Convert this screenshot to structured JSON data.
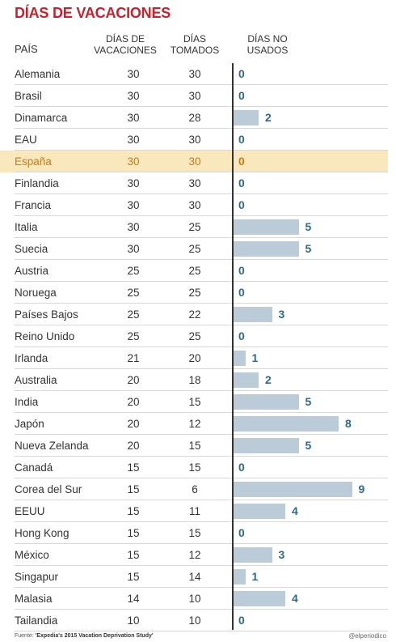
{
  "chart_data": {
    "type": "bar",
    "title": "DÍAS DE VACACIONES",
    "columns": {
      "country": "PAÍS",
      "vacation": "DÍAS DE VACACIONES",
      "taken": "DÍAS TOMADOS",
      "unused": "DÍAS NO USADOS"
    },
    "rows": [
      {
        "country": "Alemania",
        "vacation": 30,
        "taken": 30,
        "unused": 0
      },
      {
        "country": "Brasil",
        "vacation": 30,
        "taken": 30,
        "unused": 0
      },
      {
        "country": "Dinamarca",
        "vacation": 30,
        "taken": 28,
        "unused": 2
      },
      {
        "country": "EAU",
        "vacation": 30,
        "taken": 30,
        "unused": 0
      },
      {
        "country": "España",
        "vacation": 30,
        "taken": 30,
        "unused": 0,
        "highlight": true
      },
      {
        "country": "Finlandia",
        "vacation": 30,
        "taken": 30,
        "unused": 0
      },
      {
        "country": "Francia",
        "vacation": 30,
        "taken": 30,
        "unused": 0
      },
      {
        "country": "Italia",
        "vacation": 30,
        "taken": 25,
        "unused": 5
      },
      {
        "country": "Suecia",
        "vacation": 30,
        "taken": 25,
        "unused": 5
      },
      {
        "country": "Austria",
        "vacation": 25,
        "taken": 25,
        "unused": 0
      },
      {
        "country": "Noruega",
        "vacation": 25,
        "taken": 25,
        "unused": 0
      },
      {
        "country": "Países Bajos",
        "vacation": 25,
        "taken": 22,
        "unused": 3
      },
      {
        "country": "Reino Unido",
        "vacation": 25,
        "taken": 25,
        "unused": 0
      },
      {
        "country": "Irlanda",
        "vacation": 21,
        "taken": 20,
        "unused": 1
      },
      {
        "country": "Australia",
        "vacation": 20,
        "taken": 18,
        "unused": 2
      },
      {
        "country": "India",
        "vacation": 20,
        "taken": 15,
        "unused": 5
      },
      {
        "country": "Japón",
        "vacation": 20,
        "taken": 12,
        "unused": 8
      },
      {
        "country": "Nueva Zelanda",
        "vacation": 20,
        "taken": 15,
        "unused": 5
      },
      {
        "country": "Canadá",
        "vacation": 15,
        "taken": 15,
        "unused": 0
      },
      {
        "country": "Corea del Sur",
        "vacation": 15,
        "taken": 6,
        "unused": 9
      },
      {
        "country": "EEUU",
        "vacation": 15,
        "taken": 11,
        "unused": 4
      },
      {
        "country": "Hong Kong",
        "vacation": 15,
        "taken": 15,
        "unused": 0
      },
      {
        "country": "México",
        "vacation": 15,
        "taken": 12,
        "unused": 3
      },
      {
        "country": "Singapur",
        "vacation": 15,
        "taken": 14,
        "unused": 1
      },
      {
        "country": "Malasia",
        "vacation": 14,
        "taken": 10,
        "unused": 4
      },
      {
        "country": "Tailandia",
        "vacation": 10,
        "taken": 10,
        "unused": 0
      }
    ],
    "bar_color": "#bccbd8",
    "label_color": "#2b6b8c",
    "highlight_color": "#f9e8bd",
    "highlight_text_color": "#c97a12",
    "title_color": "#cc1f2a",
    "source_prefix": "Fuente:",
    "source": "'Expedia's 2015 Vacation Deprivation Study'",
    "credit": "@elperiodico"
  }
}
